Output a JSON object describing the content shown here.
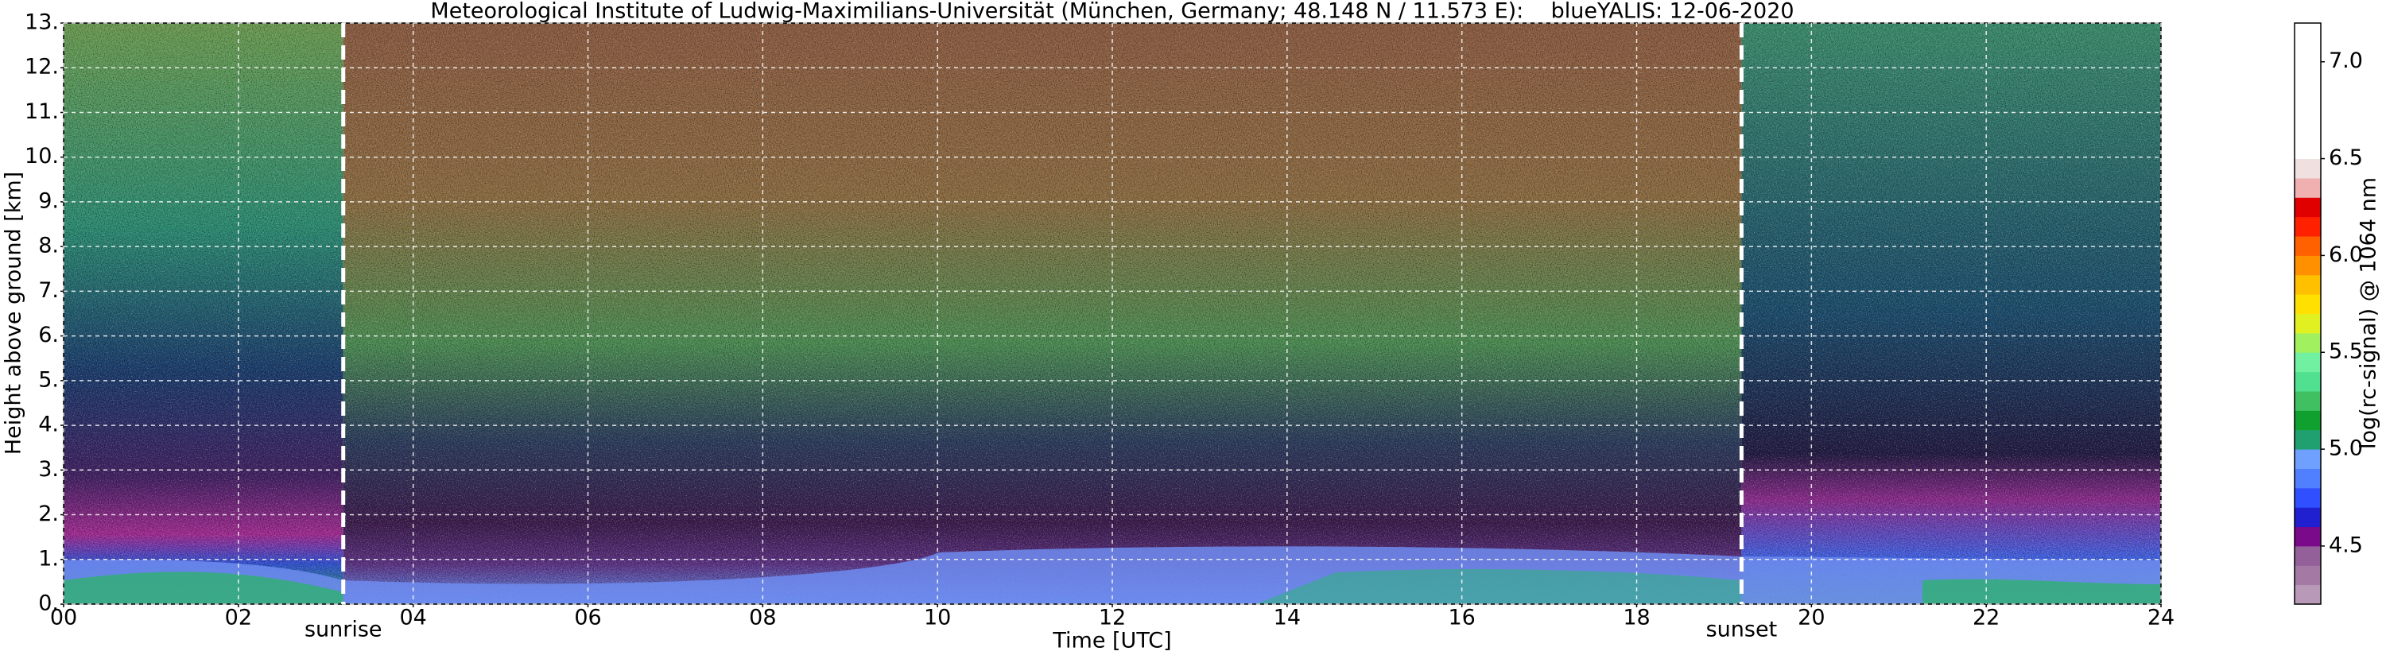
{
  "chart_data": {
    "type": "heatmap",
    "title": "Meteorological Institute of Ludwig-Maximilians-Universität (München, Germany; 48.148 N / 11.573 E):    blueYALIS: 12-06-2020",
    "xlabel": "Time [UTC]",
    "ylabel": "Height above ground [km]",
    "xlim": [
      0,
      24
    ],
    "xticks": [
      {
        "value": 0,
        "label": "00"
      },
      {
        "value": 2,
        "label": "02"
      },
      {
        "value": 4,
        "label": "04"
      },
      {
        "value": 6,
        "label": "06"
      },
      {
        "value": 8,
        "label": "08"
      },
      10,
      12,
      14,
      16,
      18,
      20,
      22,
      24
    ],
    "ylim": [
      0,
      13
    ],
    "yticks": [
      {
        "value": 0,
        "label": "0."
      },
      {
        "value": 1,
        "label": "1."
      },
      {
        "value": 2,
        "label": "2."
      },
      {
        "value": 3,
        "label": "3."
      },
      {
        "value": 4,
        "label": "4."
      },
      {
        "value": 5,
        "label": "5."
      },
      {
        "value": 6,
        "label": "6."
      },
      {
        "value": 7,
        "label": "7."
      },
      {
        "value": 8,
        "label": "8."
      },
      {
        "value": 9,
        "label": "9."
      },
      {
        "value": 10,
        "label": "10."
      },
      {
        "value": 11,
        "label": "11."
      },
      {
        "value": 12,
        "label": "12."
      },
      {
        "value": 13,
        "label": "13."
      }
    ],
    "grid": true,
    "annotations": [
      {
        "label": "sunrise",
        "x": 3.2
      },
      {
        "label": "sunset",
        "x": 19.2
      }
    ],
    "colorbar": {
      "label": "log(rc-signal) @ 1064 nm",
      "lim": [
        4.2,
        7.2
      ],
      "ticks": [
        4.5,
        {
          "value": 5,
          "label": "5.0"
        },
        5.5,
        {
          "value": 6,
          "label": "6.0"
        },
        6.5,
        {
          "value": 7,
          "label": "7.0"
        }
      ],
      "colors": [
        "#b89ab8",
        "#a47aa4",
        "#93609a",
        "#7a0a8a",
        "#2020d0",
        "#3050ff",
        "#5080ff",
        "#70a0ff",
        "#20a070",
        "#10a030",
        "#40c060",
        "#50e090",
        "#70f0a0",
        "#a0f060",
        "#e0f020",
        "#ffe000",
        "#ffc000",
        "#ff9000",
        "#ff6000",
        "#ff2000",
        "#e00000",
        "#f0b0b0",
        "#f0e0e0",
        "#ffffff",
        "#ffffff",
        "#ffffff",
        "#ffffff",
        "#ffffff",
        "#ffffff",
        "#ffffff"
      ]
    }
  }
}
